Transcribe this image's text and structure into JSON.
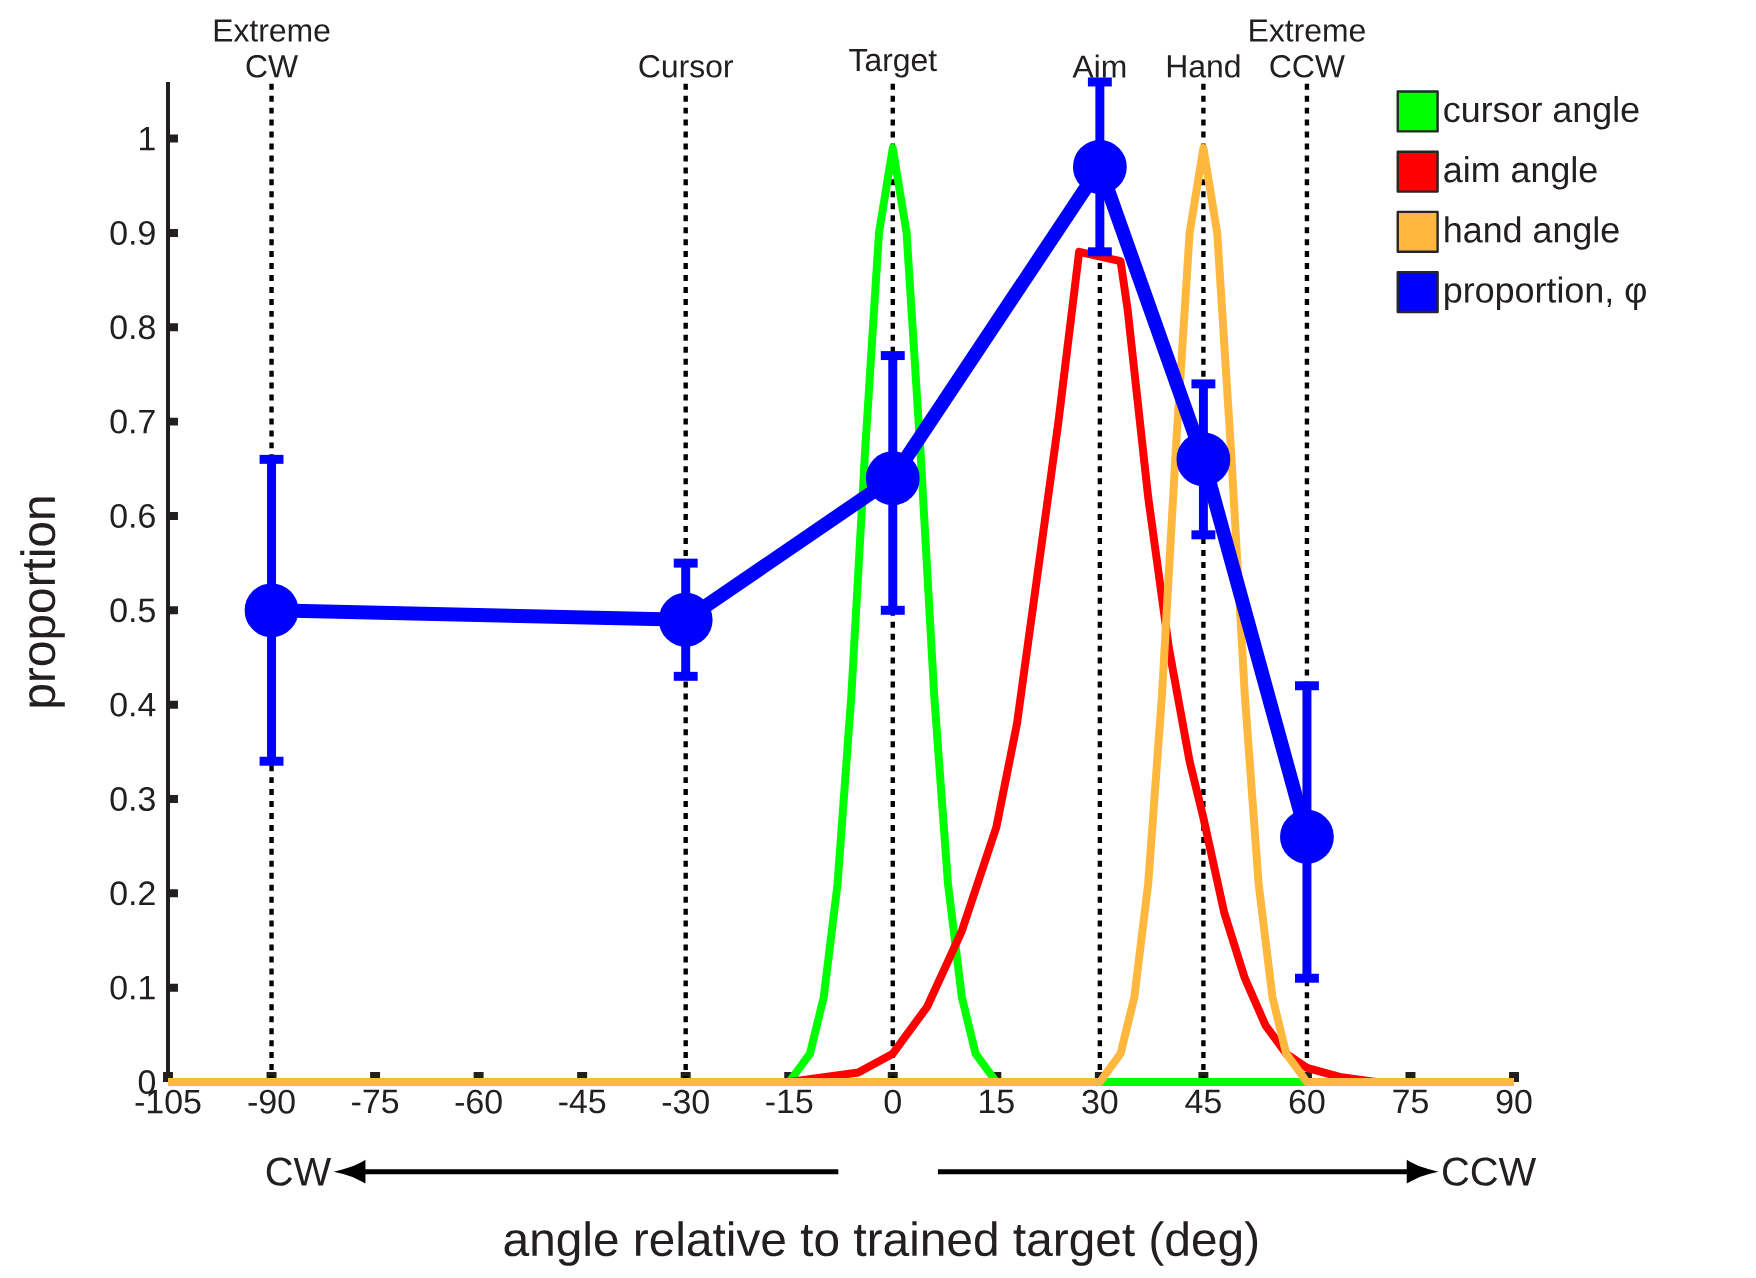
{
  "chart_data": {
    "type": "line",
    "xlabel": "angle relative to trained target (deg)",
    "ylabel": "proportion",
    "xlim": [
      -105,
      90
    ],
    "ylim": [
      0,
      1.06
    ],
    "xticks": [
      -105,
      -90,
      -75,
      -60,
      -45,
      -30,
      -15,
      0,
      15,
      30,
      45,
      60,
      75,
      90
    ],
    "yticks": [
      0,
      0.1,
      0.2,
      0.3,
      0.4,
      0.5,
      0.6,
      0.7,
      0.8,
      0.9,
      1
    ],
    "legend": "top right",
    "annotations": [
      "CW",
      "CCW"
    ],
    "ref_lines": [
      {
        "axis": "x",
        "value": -90,
        "label": "Extreme CW",
        "color": "#000000",
        "line_style": "dotted"
      },
      {
        "axis": "x",
        "value": -30,
        "label": "Cursor",
        "color": "#000000",
        "line_style": "dotted"
      },
      {
        "axis": "x",
        "value": 0,
        "label": "Target",
        "color": "#000000",
        "line_style": "dotted"
      },
      {
        "axis": "x",
        "value": 30,
        "label": "Aim",
        "color": "#000000",
        "line_style": "dotted"
      },
      {
        "axis": "x",
        "value": 45,
        "label": "Hand",
        "color": "#000000",
        "line_style": "dotted"
      },
      {
        "axis": "x",
        "value": 60,
        "label": "Extreme CCW",
        "color": "#000000",
        "line_style": "dotted"
      }
    ],
    "series": [
      {
        "name": "cursor angle",
        "color": "#00ff00",
        "x": [
          -99,
          -15,
          -12,
          -10,
          -8,
          -6,
          -4,
          -2,
          0,
          2,
          4,
          6,
          8,
          10,
          12,
          15,
          77
        ],
        "values": [
          0,
          0,
          0.03,
          0.09,
          0.21,
          0.41,
          0.67,
          0.9,
          0.99,
          0.9,
          0.67,
          0.41,
          0.21,
          0.09,
          0.03,
          0,
          0
        ]
      },
      {
        "name": "aim angle",
        "color": "#ff0000",
        "x": [
          -15,
          -5,
          0,
          5,
          10,
          15,
          18,
          21,
          24,
          27,
          33,
          34,
          37,
          40,
          43,
          45,
          48,
          51,
          54,
          57,
          60,
          65,
          70,
          80
        ],
        "values": [
          0,
          0.01,
          0.03,
          0.08,
          0.16,
          0.27,
          0.38,
          0.54,
          0.7,
          0.88,
          0.87,
          0.82,
          0.62,
          0.46,
          0.34,
          0.28,
          0.18,
          0.11,
          0.06,
          0.03,
          0.015,
          0.005,
          0,
          0
        ]
      },
      {
        "name": "hand angle",
        "color": "#ffb73d",
        "x": [
          -105,
          30,
          33,
          35,
          37,
          39,
          41,
          43,
          45,
          47,
          49,
          51,
          53,
          55,
          57,
          60,
          90
        ],
        "values": [
          0,
          0,
          0.03,
          0.09,
          0.21,
          0.41,
          0.67,
          0.9,
          0.99,
          0.9,
          0.67,
          0.41,
          0.21,
          0.09,
          0.03,
          0,
          0
        ]
      },
      {
        "name": "proportion, φ",
        "color": "#0000ff",
        "marker": "circle",
        "x": [
          -90,
          -30,
          0,
          30,
          45,
          60
        ],
        "values": [
          0.5,
          0.49,
          0.64,
          0.97,
          0.66,
          0.26
        ],
        "errors": [
          [
            0.34,
            0.66
          ],
          [
            0.43,
            0.55
          ],
          [
            0.5,
            0.77
          ],
          [
            0.88,
            1.06
          ],
          [
            0.58,
            0.74
          ],
          [
            0.11,
            0.42
          ]
        ]
      }
    ]
  }
}
